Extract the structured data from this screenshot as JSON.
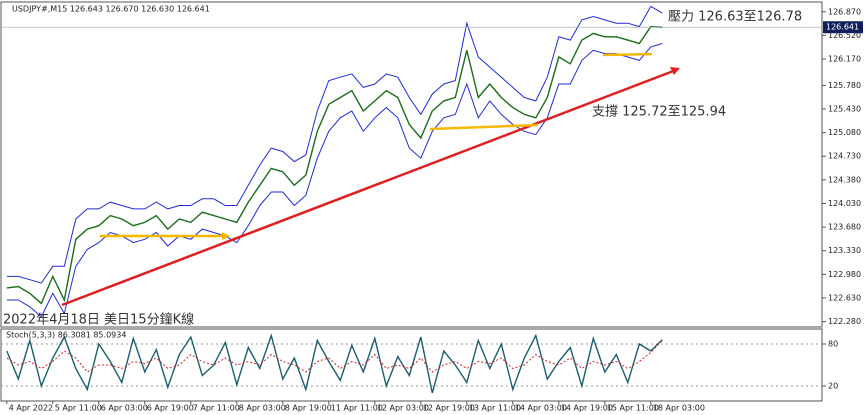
{
  "chart_data": [
    {
      "type": "line",
      "title": "USDJPY#,M15  126.643 126.670 126.630 126.641",
      "annotations": [
        "壓力 126.63至126.78",
        "支撐 125.72至125.94",
        "2022年4月18日 美日15分鐘K線"
      ],
      "categories": [
        "4 Apr 2022",
        null,
        null,
        null,
        "5 Apr 11:00",
        null,
        null,
        null,
        "6 Apr 03:00",
        null,
        null,
        null,
        "6 Apr 19:00",
        null,
        null,
        null,
        "7 Apr 11:00",
        null,
        null,
        null,
        "8 Apr 03:00",
        null,
        null,
        null,
        "8 Apr 19:00",
        null,
        null,
        null,
        "11 Apr 11:00",
        null,
        null,
        null,
        "12 Apr 03:00",
        null,
        null,
        null,
        "12 Apr 19:00",
        null,
        null,
        null,
        "13 Apr 11:00",
        null,
        null,
        null,
        "14 Apr 03:00",
        null,
        null,
        null,
        "14 Apr 19:00",
        null,
        null,
        null,
        "15 Apr 11:00",
        null,
        null,
        null,
        "18 Apr 03:00",
        null
      ],
      "series": [
        {
          "name": "Price",
          "color": "#1a6e1a",
          "values": [
            122.78,
            122.8,
            122.7,
            122.55,
            122.95,
            122.6,
            123.5,
            123.65,
            123.7,
            123.85,
            123.8,
            123.7,
            123.75,
            123.85,
            123.65,
            123.8,
            123.75,
            123.9,
            123.85,
            123.8,
            123.75,
            124.05,
            124.3,
            124.55,
            124.5,
            124.3,
            124.45,
            125.1,
            125.5,
            125.6,
            125.7,
            125.4,
            125.55,
            125.7,
            125.6,
            125.2,
            125.0,
            125.4,
            125.55,
            125.6,
            126.3,
            125.6,
            125.8,
            125.6,
            125.45,
            125.35,
            125.3,
            125.6,
            126.2,
            126.1,
            126.45,
            126.55,
            126.5,
            126.5,
            126.45,
            126.4,
            126.65,
            126.64
          ]
        },
        {
          "name": "Upper band",
          "color": "#1f2bd6",
          "values": [
            122.95,
            122.95,
            122.9,
            122.85,
            123.1,
            123.1,
            123.8,
            123.95,
            123.95,
            124.05,
            124.0,
            123.95,
            123.95,
            124.05,
            123.95,
            124.0,
            124.0,
            124.1,
            124.1,
            124.0,
            124.0,
            124.3,
            124.6,
            124.85,
            124.8,
            124.65,
            124.75,
            125.4,
            125.85,
            125.9,
            125.95,
            125.75,
            125.8,
            125.95,
            125.9,
            125.6,
            125.35,
            125.65,
            125.8,
            125.85,
            126.7,
            126.2,
            126.05,
            125.9,
            125.75,
            125.6,
            125.55,
            125.9,
            126.5,
            126.45,
            126.75,
            126.8,
            126.75,
            126.7,
            126.7,
            126.65,
            126.95,
            126.85
          ]
        },
        {
          "name": "Lower band",
          "color": "#1f2bd6",
          "values": [
            122.6,
            122.6,
            122.5,
            122.35,
            122.7,
            122.4,
            123.1,
            123.35,
            123.45,
            123.6,
            123.55,
            123.45,
            123.5,
            123.6,
            123.4,
            123.55,
            123.5,
            123.65,
            123.6,
            123.55,
            123.45,
            123.7,
            124.0,
            124.2,
            124.2,
            124.0,
            124.15,
            124.7,
            125.1,
            125.3,
            125.4,
            125.1,
            125.3,
            125.45,
            125.3,
            124.85,
            124.7,
            125.1,
            125.3,
            125.35,
            125.8,
            125.3,
            125.55,
            125.35,
            125.2,
            125.1,
            125.05,
            125.3,
            125.8,
            125.8,
            126.15,
            126.3,
            126.25,
            126.25,
            126.2,
            126.15,
            126.35,
            126.4
          ]
        }
      ],
      "last_price": 126.641,
      "ylim": [
        122.2,
        127.0
      ],
      "yticks": [
        {
          "value": 126.87,
          "label": "126.870"
        },
        {
          "value": 126.52,
          "label": "126.520"
        },
        {
          "value": 126.17,
          "label": "126.170"
        },
        {
          "value": 125.78,
          "label": "125.780"
        },
        {
          "value": 125.43,
          "label": "125.430"
        },
        {
          "value": 125.08,
          "label": "125.080"
        },
        {
          "value": 124.73,
          "label": "124.730"
        },
        {
          "value": 124.38,
          "label": "124.380"
        },
        {
          "value": 124.03,
          "label": "124.030"
        },
        {
          "value": 123.68,
          "label": "123.680"
        },
        {
          "value": 123.33,
          "label": "123.330"
        },
        {
          "value": 122.98,
          "label": "122.980"
        },
        {
          "value": 122.63,
          "label": "122.630"
        },
        {
          "value": 122.28,
          "label": "122.280"
        }
      ]
    },
    {
      "type": "line",
      "title": "Stoch(5,3,3) 86.3081 85.0934",
      "series": [
        {
          "name": "Main",
          "color": "#1a5f6e",
          "values": [
            70,
            30,
            85,
            20,
            60,
            90,
            45,
            15,
            80,
            55,
            25,
            88,
            40,
            72,
            18,
            65,
            90,
            35,
            50,
            82,
            22,
            75,
            45,
            92,
            30,
            60,
            15,
            85,
            55,
            28,
            78,
            40,
            88,
            20,
            62,
            35,
            90,
            10,
            70,
            50,
            25,
            85,
            45,
            80,
            15,
            60,
            92,
            30,
            55,
            75,
            20,
            88,
            40,
            65,
            25,
            80,
            70,
            86.3081
          ]
        },
        {
          "name": "Signal",
          "color": "#d42020",
          "values": [
            60,
            50,
            55,
            45,
            55,
            70,
            60,
            40,
            50,
            50,
            45,
            55,
            52,
            60,
            45,
            50,
            65,
            55,
            50,
            60,
            50,
            55,
            50,
            65,
            55,
            50,
            40,
            55,
            60,
            45,
            55,
            50,
            65,
            45,
            50,
            45,
            60,
            40,
            50,
            55,
            45,
            55,
            52,
            60,
            45,
            50,
            65,
            55,
            50,
            60,
            45,
            55,
            50,
            55,
            45,
            55,
            68,
            85.0934
          ]
        }
      ],
      "ylim": [
        0,
        100
      ],
      "yticks": [
        80,
        20
      ]
    }
  ]
}
